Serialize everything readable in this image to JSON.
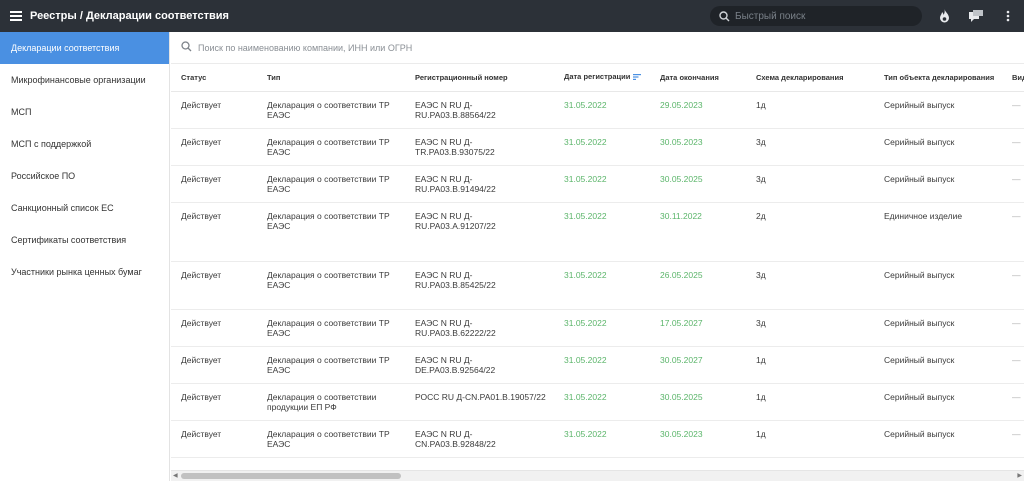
{
  "header": {
    "title": "Реестры / Декларации соответствия",
    "search_placeholder": "Быстрый поиск",
    "icons": [
      "menu-icon",
      "search-icon",
      "fire-icon",
      "chat-icon",
      "more-vert-icon"
    ]
  },
  "sidebar": {
    "items": [
      {
        "label": "Декларации соответствия",
        "active": true
      },
      {
        "label": "Микрофинансовые организации"
      },
      {
        "label": "МСП"
      },
      {
        "label": "МСП с поддержкой"
      },
      {
        "label": "Российское ПО"
      },
      {
        "label": "Санкционный список ЕС"
      },
      {
        "label": "Сертификаты соответствия"
      },
      {
        "label": "Участники рынка ценных бумаг"
      }
    ]
  },
  "main": {
    "search_placeholder": "Поиск по наименованию компании, ИНН или ОГРН",
    "columns": [
      "Статус",
      "Тип",
      "Регистрационный номер",
      "Дата регистрации",
      "Дата окончания",
      "Схема декларирования",
      "Тип объекта декларирования",
      "Вид"
    ],
    "rows": [
      {
        "status": "Действует",
        "type": "Декларация о соответствии ТР ЕАЭС",
        "reg": "ЕАЭС N RU Д-RU.РА03.В.88564/22",
        "date_reg": "31.05.2022",
        "date_end": "29.05.2023",
        "scheme": "1д",
        "obj": "Серийный выпуск",
        "kind": "—"
      },
      {
        "status": "Действует",
        "type": "Декларация о соответствии ТР ЕАЭС",
        "reg": "ЕАЭС N RU Д-TR.РА03.В.93075/22",
        "date_reg": "31.05.2022",
        "date_end": "30.05.2023",
        "scheme": "3д",
        "obj": "Серийный выпуск",
        "kind": "—"
      },
      {
        "status": "Действует",
        "type": "Декларация о соответствии ТР ЕАЭС",
        "reg": "ЕАЭС N RU Д-RU.РА03.В.91494/22",
        "date_reg": "31.05.2022",
        "date_end": "30.05.2025",
        "scheme": "3д",
        "obj": "Серийный выпуск",
        "kind": "—"
      },
      {
        "status": "Действует",
        "type": "Декларация о соответствии ТР ЕАЭС",
        "reg": "ЕАЭС N RU Д-RU.РА03.А.91207/22",
        "date_reg": "31.05.2022",
        "date_end": "30.11.2022",
        "scheme": "2д",
        "obj": "Единичное изделие",
        "kind": "—"
      },
      {
        "status": "Действует",
        "type": "Декларация о соответствии ТР ЕАЭС",
        "reg": "ЕАЭС N RU Д-RU.РА03.В.85425/22",
        "date_reg": "31.05.2022",
        "date_end": "26.05.2025",
        "scheme": "3д",
        "obj": "Серийный выпуск",
        "kind": "—"
      },
      {
        "status": "Действует",
        "type": "Декларация о соответствии ТР ЕАЭС",
        "reg": "ЕАЭС N RU Д-RU.РА03.В.62222/22",
        "date_reg": "31.05.2022",
        "date_end": "17.05.2027",
        "scheme": "3д",
        "obj": "Серийный выпуск",
        "kind": "—"
      },
      {
        "status": "Действует",
        "type": "Декларация о соответствии ТР ЕАЭС",
        "reg": "ЕАЭС N RU Д-DE.РА03.В.92564/22",
        "date_reg": "31.05.2022",
        "date_end": "30.05.2027",
        "scheme": "1д",
        "obj": "Серийный выпуск",
        "kind": "—"
      },
      {
        "status": "Действует",
        "type": "Декларация о соответствии продукции ЕП РФ",
        "reg": "РОСС RU Д-CN.РА01.В.19057/22",
        "date_reg": "31.05.2022",
        "date_end": "30.05.2025",
        "scheme": "1д",
        "obj": "Серийный выпуск",
        "kind": "—"
      },
      {
        "status": "Действует",
        "type": "Декларация о соответствии ТР ЕАЭС",
        "reg": "ЕАЭС N RU Д-CN.РА03.В.92848/22",
        "date_reg": "31.05.2022",
        "date_end": "30.05.2023",
        "scheme": "1д",
        "obj": "Серийный выпуск",
        "kind": "—"
      }
    ]
  },
  "colors": {
    "topbar": "#2c3138",
    "accent": "#4a90e2",
    "date_green": "#5bb56a"
  }
}
